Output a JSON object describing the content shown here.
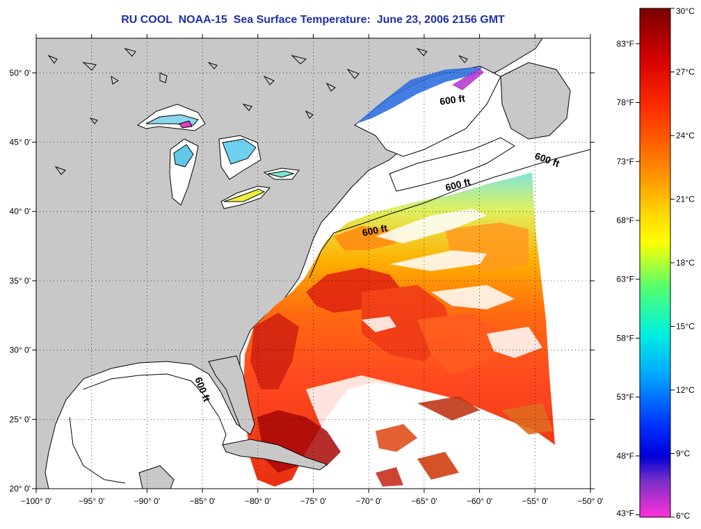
{
  "title": "RU COOL  NOAA-15  Sea Surface Temperature:  June 23, 2006 2156 GMT",
  "map": {
    "x_ticks": [
      "−100° 0'",
      "−95° 0'",
      "−90° 0'",
      "−85° 0'",
      "−80° 0'",
      "−75° 0'",
      "−70° 0'",
      "−65° 0'",
      "−60° 0'",
      "−55° 0'",
      "−50° 0'"
    ],
    "y_ticks": [
      "50° 0'",
      "45° 0'",
      "40° 0'",
      "35° 0'",
      "30° 0'",
      "25° 0'",
      "20° 0'"
    ],
    "lon_range": [
      -100,
      -50
    ],
    "lat_range": [
      20,
      52.5
    ],
    "grid": "dotted",
    "isobath_labels": [
      "600 ft",
      "600 ft",
      "600 ft",
      "600 ft",
      "600 ft"
    ],
    "colors": {
      "land": "#c8c8c8",
      "shelf_water": "#ffffff",
      "coastline": "#000000"
    }
  },
  "colorbar": {
    "celsius_labels": [
      "30°C",
      "27°C",
      "24°C",
      "21°C",
      "18°C",
      "15°C",
      "12°C",
      "9°C",
      "6°C"
    ],
    "fahrenheit_labels": [
      "83°F",
      "78°F",
      "73°F",
      "68°F",
      "63°F",
      "58°F",
      "53°F",
      "48°F",
      "43°F"
    ],
    "range_c": [
      6,
      30
    ],
    "colors": [
      "#8b0000",
      "#ff0000",
      "#ff8c00",
      "#ffff00",
      "#00ff7f",
      "#00e5ff",
      "#0000ff",
      "#7b2fbf",
      "#ff33cc"
    ]
  }
}
